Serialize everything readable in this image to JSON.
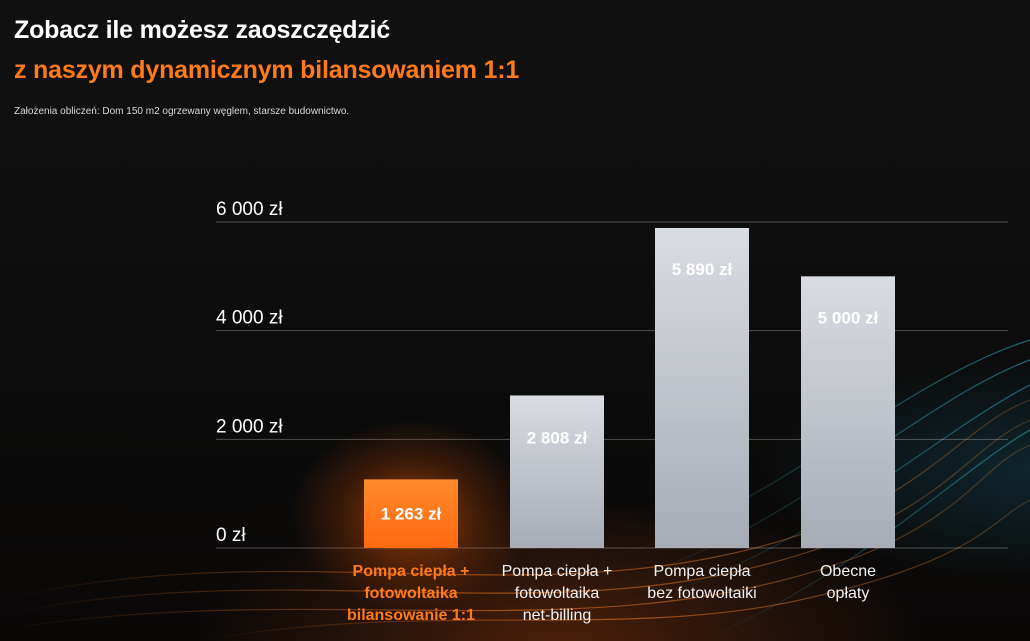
{
  "header": {
    "title": "Zobacz ile możesz zaoszczędzić",
    "subtitle": "z naszym dynamicznym bilansowaniem 1:1",
    "note": "Założenia obliczeń: Dom 150 m2 ogrzewany węglem, starsze budownictwo."
  },
  "colors": {
    "highlight": "#ff7a1a",
    "bar_default": "#b9bec6",
    "text_light": "#ffffff"
  },
  "chart_data": {
    "type": "bar",
    "categories": [
      [
        "Pompa ciepła +",
        "fotowoltaika",
        "bilansowanie 1:1"
      ],
      [
        "Pompa ciepła +",
        "fotowoltaika",
        "net-billing"
      ],
      [
        "Pompa ciepła",
        "bez fotowoltaiki"
      ],
      [
        "Obecne",
        "opłaty"
      ]
    ],
    "values": [
      1263,
      2808,
      5890,
      5000
    ],
    "value_labels": [
      "1 263 zł",
      "2 808 zł",
      "5 890 zł",
      "5 000 zł"
    ],
    "highlighted_index": 0,
    "ylim": [
      0,
      6000
    ],
    "yticks": [
      0,
      2000,
      4000,
      6000
    ],
    "ytick_labels": [
      "0 zł",
      "2 000 zł",
      "4 000 zł",
      "6 000 zł"
    ],
    "grid": true
  }
}
